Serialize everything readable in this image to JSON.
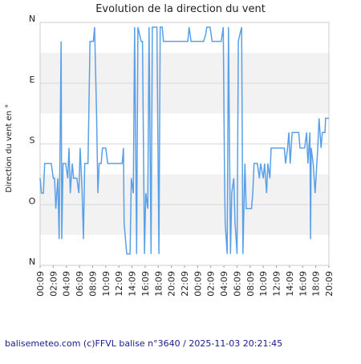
{
  "chart_data": {
    "type": "line",
    "title": "Evolution de la direction du vent",
    "ylabel": "Direction du vent en °",
    "footer": "balisemeteo.com (c)FFVL balise n°3640 / 2025-11-03 20:21:45",
    "color": "#5aa0e8",
    "grid": true,
    "xlim": [
      0,
      44
    ],
    "xticks": [
      {
        "value": 0,
        "label": "00:09"
      },
      {
        "value": 2,
        "label": "02:09"
      },
      {
        "value": 4,
        "label": "04:09"
      },
      {
        "value": 6,
        "label": "06:09"
      },
      {
        "value": 8,
        "label": "08:09"
      },
      {
        "value": 10,
        "label": "10:09"
      },
      {
        "value": 12,
        "label": "12:09"
      },
      {
        "value": 14,
        "label": "14:09"
      },
      {
        "value": 16,
        "label": "16:09"
      },
      {
        "value": 18,
        "label": "18:09"
      },
      {
        "value": 20,
        "label": "20:09"
      },
      {
        "value": 22,
        "label": "22:09"
      },
      {
        "value": 24,
        "label": "00:09"
      },
      {
        "value": 26,
        "label": "02:09"
      },
      {
        "value": 28,
        "label": "04:09"
      },
      {
        "value": 30,
        "label": "06:09"
      },
      {
        "value": 32,
        "label": "08:09"
      },
      {
        "value": 34,
        "label": "10:09"
      },
      {
        "value": 36,
        "label": "12:09"
      },
      {
        "value": 38,
        "label": "14:09"
      },
      {
        "value": 40,
        "label": "16:09"
      },
      {
        "value": 42,
        "label": "18:09"
      },
      {
        "value": 44,
        "label": "20:09"
      }
    ],
    "ylim": [
      360,
      0
    ],
    "yticks": [
      {
        "value": 0,
        "label": "N"
      },
      {
        "value": 90,
        "label": "E"
      },
      {
        "value": 180,
        "label": "S"
      },
      {
        "value": 270,
        "label": "O"
      },
      {
        "value": 360,
        "label": "N"
      }
    ],
    "x": [
      0,
      0.2,
      0.5,
      0.7,
      1.7,
      2.0,
      2.2,
      2.4,
      2.7,
      2.9,
      3.2,
      3.3,
      3.5,
      3.9,
      4.2,
      4.4,
      4.6,
      4.9,
      5.1,
      5.6,
      5.9,
      6.1,
      6.4,
      6.6,
      6.8,
      7.3,
      7.6,
      8.1,
      8.3,
      8.6,
      8.8,
      9.0,
      9.3,
      9.5,
      10.0,
      10.3,
      12.5,
      12.7,
      12.8,
      13.2,
      13.7,
      13.9,
      14.2,
      14.4,
      14.7,
      14.9,
      15.4,
      15.6,
      15.9,
      16.1,
      16.4,
      16.6,
      16.9,
      17.1,
      17.8,
      18.1,
      18.3,
      18.6,
      18.8,
      22.5,
      22.7,
      23.0,
      24.9,
      25.2,
      25.4,
      25.9,
      26.2,
      27.6,
      27.9,
      28.1,
      28.2,
      28.5,
      28.7,
      29.0,
      29.2,
      29.5,
      29.7,
      30.0,
      30.2,
      30.4,
      30.7,
      30.9,
      31.2,
      31.4,
      32.2,
      32.4,
      32.6,
      33.1,
      33.4,
      33.6,
      34.0,
      34.2,
      34.5,
      34.7,
      35.0,
      35.2,
      37.2,
      37.4,
      37.7,
      37.9,
      38.1,
      38.4,
      39.4,
      39.6,
      40.3,
      40.6,
      40.8,
      41.1,
      41.2,
      41.3,
      41.6,
      41.9,
      42.3,
      42.5,
      42.8,
      43.0,
      43.4,
      43.5,
      44.0
    ],
    "values": [
      231,
      253,
      253,
      209,
      209,
      231,
      231,
      276,
      231,
      321,
      28,
      321,
      209,
      209,
      231,
      186,
      253,
      209,
      231,
      231,
      253,
      186,
      253,
      321,
      209,
      209,
      28,
      28,
      7,
      137,
      253,
      209,
      209,
      186,
      186,
      209,
      209,
      186,
      297,
      343,
      343,
      231,
      253,
      7,
      343,
      7,
      28,
      28,
      343,
      253,
      276,
      7,
      343,
      7,
      7,
      343,
      7,
      7,
      28,
      28,
      7,
      28,
      28,
      19,
      7,
      7,
      28,
      28,
      7,
      231,
      297,
      343,
      7,
      343,
      253,
      231,
      297,
      343,
      28,
      19,
      7,
      343,
      209,
      276,
      276,
      253,
      209,
      209,
      231,
      209,
      231,
      209,
      253,
      209,
      231,
      186,
      186,
      209,
      186,
      163,
      209,
      163,
      163,
      186,
      186,
      163,
      209,
      163,
      321,
      186,
      209,
      253,
      186,
      142,
      186,
      163,
      163,
      142,
      142
    ]
  }
}
